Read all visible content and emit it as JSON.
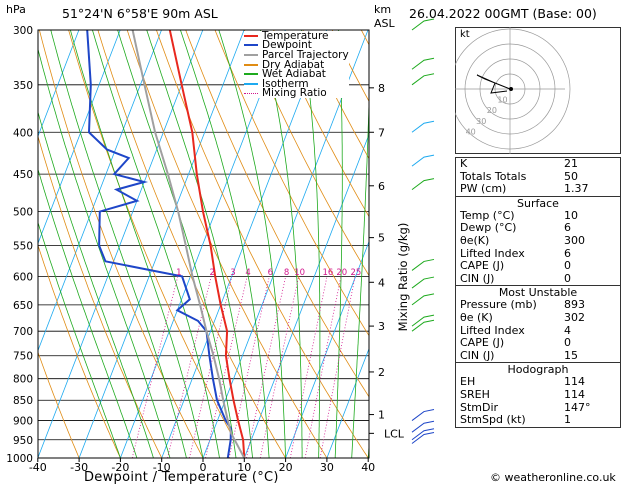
{
  "header": {
    "hpa_label": "hPa",
    "location": "51°24'N 6°58'E 90m ASL",
    "km_label": "km",
    "asl_label": "ASL",
    "datetime": "26.04.2022 00GMT (Base: 00)"
  },
  "legend": [
    {
      "label": "Temperature",
      "color": "#e8281e"
    },
    {
      "label": "Dewpoint",
      "color": "#1e46c8"
    },
    {
      "label": "Parcel Trajectory",
      "color": "#a0a0a0"
    },
    {
      "label": "Dry Adiabat",
      "color": "#e08c14"
    },
    {
      "label": "Wet Adiabat",
      "color": "#1eaa1e"
    },
    {
      "label": "Isotherm",
      "color": "#1eaaf0"
    },
    {
      "label": "Mixing Ratio",
      "color": "#d2148c"
    }
  ],
  "chart_data": {
    "type": "line",
    "xlabel": "Dewpoint / Temperature (°C)",
    "ylabel": "Mixing Ratio (g/kg)",
    "x_ticks": [
      -40,
      -30,
      -20,
      -10,
      0,
      10,
      20,
      30,
      40
    ],
    "pressure_levels": [
      300,
      350,
      400,
      450,
      500,
      550,
      600,
      650,
      700,
      750,
      800,
      850,
      900,
      950,
      1000
    ],
    "km_ticks": [
      {
        "label": "8",
        "p": 353
      },
      {
        "label": "7",
        "p": 400
      },
      {
        "label": "6",
        "p": 465
      },
      {
        "label": "5",
        "p": 538
      },
      {
        "label": "4",
        "p": 610
      },
      {
        "label": "3",
        "p": 690
      },
      {
        "label": "2",
        "p": 785
      },
      {
        "label": "1",
        "p": 885
      }
    ],
    "lcl": {
      "label": "LCL",
      "p": 933
    },
    "mixing_ratio_labels": [
      "1",
      "2",
      "3",
      "4",
      "6",
      "8",
      "10",
      "16",
      "20",
      "25"
    ],
    "mixing_ratio_values": [
      1,
      2,
      3,
      4,
      6,
      8,
      10,
      16,
      20,
      25
    ],
    "series": [
      {
        "name": "Temperature",
        "color": "#e8281e",
        "points": [
          [
            1000,
            10
          ],
          [
            950,
            8
          ],
          [
            900,
            5
          ],
          [
            850,
            2
          ],
          [
            800,
            -1
          ],
          [
            750,
            -4
          ],
          [
            700,
            -6
          ],
          [
            650,
            -10
          ],
          [
            600,
            -14
          ],
          [
            550,
            -18
          ],
          [
            500,
            -23
          ],
          [
            450,
            -28
          ],
          [
            400,
            -33
          ],
          [
            350,
            -40
          ],
          [
            300,
            -48
          ]
        ]
      },
      {
        "name": "Dewpoint",
        "color": "#1e46c8",
        "points": [
          [
            1000,
            6
          ],
          [
            950,
            5
          ],
          [
            920,
            4
          ],
          [
            900,
            2
          ],
          [
            850,
            -2
          ],
          [
            800,
            -5
          ],
          [
            750,
            -8
          ],
          [
            700,
            -11
          ],
          [
            680,
            -14
          ],
          [
            660,
            -20
          ],
          [
            640,
            -18
          ],
          [
            600,
            -22
          ],
          [
            590,
            -30
          ],
          [
            575,
            -42
          ],
          [
            550,
            -45
          ],
          [
            500,
            -48
          ],
          [
            485,
            -40
          ],
          [
            470,
            -46
          ],
          [
            460,
            -40
          ],
          [
            450,
            -48
          ],
          [
            430,
            -46
          ],
          [
            420,
            -52
          ],
          [
            400,
            -58
          ],
          [
            350,
            -62
          ],
          [
            300,
            -68
          ]
        ]
      },
      {
        "name": "Parcel Trajectory",
        "color": "#a0a0a0",
        "points": [
          [
            1000,
            10
          ],
          [
            933,
            4.5
          ],
          [
            900,
            2.5
          ],
          [
            850,
            -0.5
          ],
          [
            800,
            -3.5
          ],
          [
            750,
            -7
          ],
          [
            700,
            -11
          ],
          [
            650,
            -15
          ],
          [
            600,
            -19.5
          ],
          [
            550,
            -24
          ],
          [
            500,
            -29
          ],
          [
            450,
            -35
          ],
          [
            400,
            -42
          ],
          [
            350,
            -49
          ],
          [
            300,
            -57
          ]
        ]
      }
    ]
  },
  "indices": {
    "top": [
      {
        "label": "K",
        "value": "21"
      },
      {
        "label": "Totals Totals",
        "value": "50"
      },
      {
        "label": "PW (cm)",
        "value": "1.37"
      }
    ],
    "surface_title": "Surface",
    "surface": [
      {
        "label": "Temp (°C)",
        "value": "10"
      },
      {
        "label": "Dewp (°C)",
        "value": "6"
      },
      {
        "label": "θe(K)",
        "value": "300"
      },
      {
        "label": "Lifted Index",
        "value": "6"
      },
      {
        "label": "CAPE (J)",
        "value": "0"
      },
      {
        "label": "CIN (J)",
        "value": "0"
      }
    ],
    "mu_title": "Most Unstable",
    "most_unstable": [
      {
        "label": "Pressure (mb)",
        "value": "893"
      },
      {
        "label": "θe (K)",
        "value": "302"
      },
      {
        "label": "Lifted Index",
        "value": "4"
      },
      {
        "label": "CAPE (J)",
        "value": "0"
      },
      {
        "label": "CIN (J)",
        "value": "15"
      }
    ],
    "hodo_title": "Hodograph",
    "hodograph": [
      {
        "label": "EH",
        "value": "114"
      },
      {
        "label": "SREH",
        "value": "114"
      },
      {
        "label": "StmDir",
        "value": "147°"
      },
      {
        "label": "StmSpd (kt)",
        "value": "1"
      }
    ]
  },
  "hodograph_plot": {
    "label": "kt",
    "ring_labels": [
      "10",
      "20",
      "30",
      "40"
    ]
  },
  "footer": "© weatheronline.co.uk"
}
